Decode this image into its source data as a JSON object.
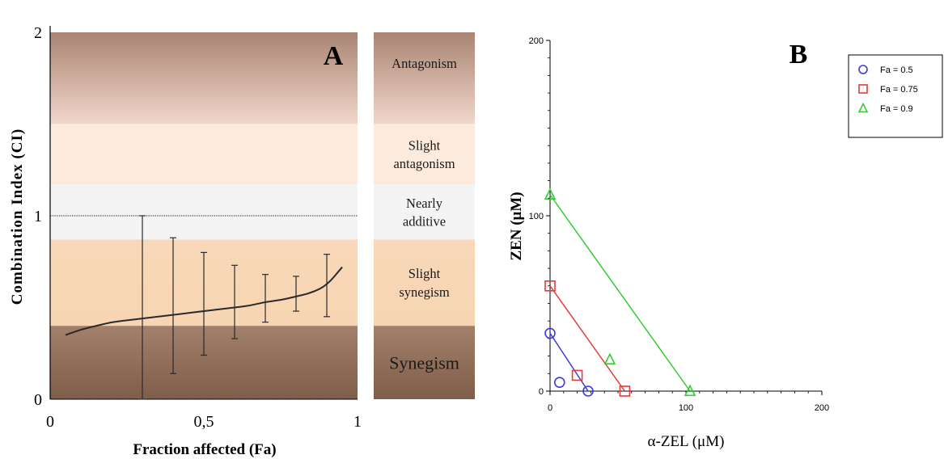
{
  "chart_data": [
    {
      "panel": "A",
      "type": "line",
      "panel_label": "A",
      "xlabel": "Fraction affected (Fa)",
      "ylabel": "Combination Index (CI)",
      "xlim": [
        0,
        1
      ],
      "ylim": [
        0,
        2
      ],
      "x_ticks": [
        "0",
        "0,5",
        "1"
      ],
      "y_ticks": [
        "0",
        "1",
        "2"
      ],
      "reference_line": 1,
      "bands": [
        {
          "label": "Antagonism",
          "from": 1.5,
          "to": 2.0,
          "color_top": "#a98472",
          "color_bottom": "#f2d7cc"
        },
        {
          "label": "Slight antagonism",
          "from": 1.17,
          "to": 1.5,
          "color_top": "#fcebdd",
          "color_bottom": "#fcebdd"
        },
        {
          "label": "Nearly additive",
          "from": 0.87,
          "to": 1.17,
          "color_top": "#f4f4f5",
          "color_bottom": "#f4f4f5"
        },
        {
          "label": "Slight synegism",
          "from": 0.4,
          "to": 0.87,
          "color_top": "#f8d8b8",
          "color_bottom": "#f7d5b3"
        },
        {
          "label": "Synegism",
          "from": 0.0,
          "to": 0.4,
          "color_top": "#a3806b",
          "color_bottom": "#7e5d4a"
        }
      ],
      "series": [
        {
          "x": [
            0.05,
            0.1,
            0.15,
            0.2,
            0.25,
            0.3,
            0.35,
            0.4,
            0.45,
            0.5,
            0.55,
            0.6,
            0.65,
            0.7,
            0.75,
            0.8,
            0.85,
            0.9,
            0.95
          ],
          "y": [
            0.35,
            0.38,
            0.4,
            0.42,
            0.43,
            0.44,
            0.45,
            0.46,
            0.47,
            0.48,
            0.49,
            0.5,
            0.51,
            0.53,
            0.54,
            0.56,
            0.58,
            0.62,
            0.72
          ]
        }
      ],
      "error_bars": [
        {
          "x": 0.3,
          "center": 0.44,
          "low": 0.0,
          "high": 1.0
        },
        {
          "x": 0.4,
          "center": 0.46,
          "low": 0.14,
          "high": 0.88
        },
        {
          "x": 0.5,
          "center": 0.48,
          "low": 0.24,
          "high": 0.8
        },
        {
          "x": 0.6,
          "center": 0.5,
          "low": 0.33,
          "high": 0.73
        },
        {
          "x": 0.7,
          "center": 0.53,
          "low": 0.42,
          "high": 0.68
        },
        {
          "x": 0.8,
          "center": 0.56,
          "low": 0.48,
          "high": 0.67
        },
        {
          "x": 0.9,
          "center": 0.62,
          "low": 0.45,
          "high": 0.79
        }
      ]
    },
    {
      "panel": "B",
      "type": "scatter",
      "panel_label": "B",
      "xlabel": "α-ZEL (μM)",
      "ylabel": "ZEN (μM)",
      "xlim": [
        0,
        200
      ],
      "ylim": [
        0,
        200
      ],
      "x_ticks": [
        "0",
        "100",
        "200"
      ],
      "y_ticks": [
        "0",
        "100",
        "200"
      ],
      "legend_position": "top-right",
      "series": [
        {
          "name": "Fa = 0.5",
          "marker": "circle",
          "color": "#3b3bd6",
          "line": [
            [
              0,
              33
            ],
            [
              28,
              0
            ]
          ],
          "points": [
            [
              0,
              33
            ],
            [
              7,
              5
            ],
            [
              28,
              0
            ]
          ]
        },
        {
          "name": "Fa = 0.75",
          "marker": "square",
          "color": "#e33b3b",
          "line": [
            [
              0,
              60
            ],
            [
              55,
              0
            ]
          ],
          "points": [
            [
              0,
              60
            ],
            [
              20,
              9
            ],
            [
              55,
              0
            ]
          ]
        },
        {
          "name": "Fa = 0.9",
          "marker": "triangle",
          "color": "#33cc33",
          "line": [
            [
              0,
              112
            ],
            [
              103,
              0
            ]
          ],
          "points": [
            [
              0,
              112
            ],
            [
              44,
              18
            ],
            [
              103,
              0
            ]
          ]
        }
      ]
    }
  ]
}
